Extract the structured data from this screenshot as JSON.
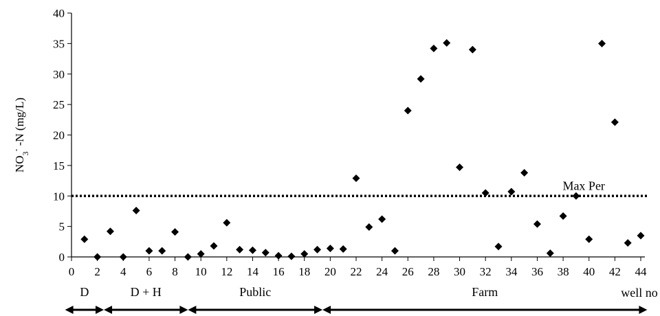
{
  "chart_data": {
    "type": "scatter",
    "y_label_parts": {
      "base": "NO",
      "sub": "3",
      "sup": "-",
      "rest": " -N (mg/L)"
    },
    "x_end_label": "well no",
    "xlim": [
      0,
      44
    ],
    "ylim": [
      0,
      40
    ],
    "x_ticks": [
      "0",
      "2",
      "4",
      "6",
      "8",
      "10",
      "12",
      "14",
      "16",
      "18",
      "20",
      "22",
      "24",
      "26",
      "28",
      "30",
      "32",
      "34",
      "36",
      "38",
      "40",
      "42",
      "44"
    ],
    "y_ticks": [
      "0",
      "5",
      "10",
      "15",
      "20",
      "25",
      "30",
      "35",
      "40"
    ],
    "grid": false,
    "marker": "diamond",
    "points": [
      [
        1,
        2.9
      ],
      [
        2,
        0.0
      ],
      [
        3,
        4.2
      ],
      [
        4,
        0.0
      ],
      [
        5,
        7.6
      ],
      [
        6,
        1.0
      ],
      [
        7,
        1.0
      ],
      [
        8,
        4.1
      ],
      [
        9,
        0.0
      ],
      [
        10,
        0.5
      ],
      [
        11,
        1.8
      ],
      [
        12,
        5.6
      ],
      [
        13,
        1.2
      ],
      [
        14,
        1.1
      ],
      [
        15,
        0.7
      ],
      [
        16,
        0.2
      ],
      [
        17,
        0.1
      ],
      [
        18,
        0.5
      ],
      [
        19,
        1.2
      ],
      [
        20,
        1.4
      ],
      [
        21,
        1.3
      ],
      [
        22,
        12.9
      ],
      [
        23,
        4.9
      ],
      [
        24,
        6.2
      ],
      [
        25,
        1.0
      ],
      [
        26,
        24.0
      ],
      [
        27,
        29.2
      ],
      [
        28,
        34.2
      ],
      [
        29,
        35.1
      ],
      [
        30,
        14.7
      ],
      [
        31,
        34.0
      ],
      [
        32,
        10.5
      ],
      [
        33,
        1.7
      ],
      [
        34,
        10.7
      ],
      [
        35,
        13.8
      ],
      [
        36,
        5.4
      ],
      [
        37,
        0.6
      ],
      [
        38,
        6.7
      ],
      [
        39,
        10.0
      ],
      [
        40,
        2.9
      ],
      [
        41,
        35.0
      ],
      [
        42,
        22.1
      ],
      [
        43,
        2.3
      ],
      [
        44,
        3.5
      ]
    ],
    "reference_line": {
      "y": 10,
      "label": "Max Per",
      "style": "dotted"
    },
    "groups": [
      {
        "label": "D",
        "from": -0.5,
        "to": 2.5
      },
      {
        "label": "D + H",
        "from": 2.5,
        "to": 9.0
      },
      {
        "label": "Public",
        "from": 9.0,
        "to": 19.4
      },
      {
        "label": "Farm",
        "from": 19.4,
        "to": 44.5
      }
    ]
  }
}
